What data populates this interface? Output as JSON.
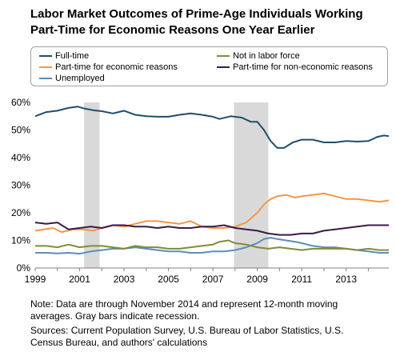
{
  "header": {
    "title_line1": "Labor Market Outcomes of Prime-Age Individuals Working",
    "title_line2": "Part-Time for Economic Reasons One Year Earlier"
  },
  "notes": {
    "line1": "Note: Data are through November 2014 and represent 12-month moving",
    "line2": "averages.  Gray bars indicate recession.",
    "line3": "Sources: Current Population Survey, U.S. Bureau of Labor Statistics, U.S.",
    "line4": "Census Bureau, and authors' calculations"
  },
  "chart_data": {
    "type": "line",
    "title": "Labor Market Outcomes of Prime-Age Individuals Working Part-Time for Economic Reasons One Year Earlier",
    "xlim": [
      1999,
      2014.92
    ],
    "ylim": [
      0,
      60
    ],
    "y_ticks": [
      "0%",
      "10%",
      "20%",
      "30%",
      "40%",
      "50%",
      "60%"
    ],
    "y_tick_values": [
      0,
      10,
      20,
      30,
      40,
      50,
      60
    ],
    "x_ticks": [
      "1999",
      "2001",
      "2003",
      "2005",
      "2007",
      "2009",
      "2011",
      "2013"
    ],
    "x_tick_values": [
      1999,
      2001,
      2003,
      2005,
      2007,
      2009,
      2011,
      2013
    ],
    "recessions": [
      [
        2001.2,
        2001.9
      ],
      [
        2007.95,
        2009.5
      ]
    ],
    "legend_position": "top",
    "series": [
      {
        "name": "Full-time",
        "color": "#1f4e6b",
        "points": [
          [
            1999,
            55
          ],
          [
            1999.5,
            56.5
          ],
          [
            2000,
            57
          ],
          [
            2000.5,
            58
          ],
          [
            2000.9,
            58.5
          ],
          [
            2001.2,
            57.8
          ],
          [
            2001.6,
            57.2
          ],
          [
            2002,
            56.8
          ],
          [
            2002.5,
            56
          ],
          [
            2003,
            57
          ],
          [
            2003.5,
            55.5
          ],
          [
            2004,
            55
          ],
          [
            2004.5,
            54.8
          ],
          [
            2005,
            54.8
          ],
          [
            2005.5,
            55.5
          ],
          [
            2006,
            56
          ],
          [
            2006.5,
            55.5
          ],
          [
            2007,
            54.8
          ],
          [
            2007.3,
            54
          ],
          [
            2007.8,
            55
          ],
          [
            2008.3,
            54.5
          ],
          [
            2008.7,
            53
          ],
          [
            2009,
            53
          ],
          [
            2009.3,
            50
          ],
          [
            2009.6,
            46
          ],
          [
            2009.9,
            43.5
          ],
          [
            2010.2,
            43.5
          ],
          [
            2010.6,
            45.5
          ],
          [
            2011,
            46.5
          ],
          [
            2011.5,
            46.5
          ],
          [
            2012,
            45.5
          ],
          [
            2012.5,
            45.5
          ],
          [
            2013,
            46
          ],
          [
            2013.5,
            45.8
          ],
          [
            2014,
            46
          ],
          [
            2014.4,
            47.5
          ],
          [
            2014.7,
            48
          ],
          [
            2014.92,
            47.8
          ]
        ]
      },
      {
        "name": "Part-time for economic reasons",
        "color": "#f79646",
        "points": [
          [
            1999,
            13.5
          ],
          [
            1999.4,
            14
          ],
          [
            1999.8,
            14.5
          ],
          [
            2000.2,
            13
          ],
          [
            2000.7,
            14
          ],
          [
            2001.2,
            14
          ],
          [
            2001.6,
            13.5
          ],
          [
            2002,
            14.5
          ],
          [
            2002.5,
            15.5
          ],
          [
            2003,
            15
          ],
          [
            2003.5,
            16
          ],
          [
            2004,
            17
          ],
          [
            2004.5,
            17
          ],
          [
            2005,
            16.5
          ],
          [
            2005.5,
            16
          ],
          [
            2006,
            17
          ],
          [
            2006.5,
            15
          ],
          [
            2007,
            14.5
          ],
          [
            2007.5,
            14.5
          ],
          [
            2008,
            15
          ],
          [
            2008.5,
            16.5
          ],
          [
            2009,
            20
          ],
          [
            2009.3,
            23
          ],
          [
            2009.6,
            25
          ],
          [
            2009.9,
            26
          ],
          [
            2010.3,
            26.5
          ],
          [
            2010.7,
            25.5
          ],
          [
            2011,
            26
          ],
          [
            2011.5,
            26.5
          ],
          [
            2012,
            27
          ],
          [
            2012.5,
            26
          ],
          [
            2013,
            25
          ],
          [
            2013.5,
            25
          ],
          [
            2014,
            24.5
          ],
          [
            2014.5,
            24
          ],
          [
            2014.92,
            24.5
          ]
        ]
      },
      {
        "name": "Unemployed",
        "color": "#5b8db8",
        "points": [
          [
            1999,
            5.5
          ],
          [
            1999.5,
            5.5
          ],
          [
            2000,
            5.3
          ],
          [
            2000.5,
            5.5
          ],
          [
            2001,
            5.2
          ],
          [
            2001.5,
            6
          ],
          [
            2002,
            6.5
          ],
          [
            2002.5,
            7
          ],
          [
            2003,
            7
          ],
          [
            2003.5,
            7.5
          ],
          [
            2004,
            7
          ],
          [
            2004.5,
            6.5
          ],
          [
            2005,
            6
          ],
          [
            2005.5,
            6
          ],
          [
            2006,
            5.5
          ],
          [
            2006.5,
            5.5
          ],
          [
            2007,
            6
          ],
          [
            2007.5,
            6
          ],
          [
            2008,
            6.5
          ],
          [
            2008.5,
            7.5
          ],
          [
            2009,
            9
          ],
          [
            2009.3,
            10.5
          ],
          [
            2009.6,
            11
          ],
          [
            2009.9,
            10.5
          ],
          [
            2010.3,
            10
          ],
          [
            2010.7,
            9.5
          ],
          [
            2011,
            9
          ],
          [
            2011.5,
            8
          ],
          [
            2012,
            7.5
          ],
          [
            2012.5,
            7.5
          ],
          [
            2013,
            7
          ],
          [
            2013.5,
            6.5
          ],
          [
            2014,
            6
          ],
          [
            2014.5,
            5.5
          ],
          [
            2014.92,
            5.5
          ]
        ]
      },
      {
        "name": "Not in labor force",
        "color": "#7f8c3a",
        "points": [
          [
            1999,
            8
          ],
          [
            1999.5,
            8
          ],
          [
            2000,
            7.5
          ],
          [
            2000.5,
            8.5
          ],
          [
            2001,
            7.5
          ],
          [
            2001.5,
            8
          ],
          [
            2002,
            8
          ],
          [
            2002.5,
            7.5
          ],
          [
            2003,
            7
          ],
          [
            2003.5,
            8
          ],
          [
            2004,
            7.5
          ],
          [
            2004.5,
            7.5
          ],
          [
            2005,
            7
          ],
          [
            2005.5,
            7
          ],
          [
            2006,
            7.5
          ],
          [
            2006.5,
            8
          ],
          [
            2007,
            8.5
          ],
          [
            2007.3,
            9.5
          ],
          [
            2007.7,
            10
          ],
          [
            2008,
            9
          ],
          [
            2008.5,
            8.5
          ],
          [
            2009,
            7.5
          ],
          [
            2009.5,
            7
          ],
          [
            2010,
            7.5
          ],
          [
            2010.5,
            7
          ],
          [
            2011,
            6.5
          ],
          [
            2011.5,
            7
          ],
          [
            2012,
            7
          ],
          [
            2012.5,
            7
          ],
          [
            2013,
            7
          ],
          [
            2013.5,
            6.5
          ],
          [
            2014,
            7
          ],
          [
            2014.5,
            6.5
          ],
          [
            2014.92,
            6.5
          ]
        ]
      },
      {
        "name": "Part-time for non-economic reasons",
        "color": "#3b1a48",
        "points": [
          [
            1999,
            16.5
          ],
          [
            1999.5,
            16
          ],
          [
            2000,
            16.5
          ],
          [
            2000.5,
            14
          ],
          [
            2001,
            14.5
          ],
          [
            2001.5,
            15
          ],
          [
            2002,
            14.5
          ],
          [
            2002.5,
            15.5
          ],
          [
            2003,
            15.5
          ],
          [
            2003.5,
            15
          ],
          [
            2004,
            15
          ],
          [
            2004.5,
            14.5
          ],
          [
            2005,
            15
          ],
          [
            2005.5,
            14.5
          ],
          [
            2006,
            14.5
          ],
          [
            2006.5,
            15
          ],
          [
            2007,
            15
          ],
          [
            2007.5,
            15.5
          ],
          [
            2008,
            14.5
          ],
          [
            2008.5,
            14
          ],
          [
            2009,
            13.5
          ],
          [
            2009.5,
            12.5
          ],
          [
            2010,
            12
          ],
          [
            2010.5,
            12
          ],
          [
            2011,
            12.5
          ],
          [
            2011.5,
            12.5
          ],
          [
            2012,
            13.5
          ],
          [
            2012.5,
            14
          ],
          [
            2013,
            14.5
          ],
          [
            2013.5,
            15
          ],
          [
            2014,
            15.5
          ],
          [
            2014.5,
            15.5
          ],
          [
            2014.92,
            15.5
          ]
        ]
      }
    ],
    "legend_layout": [
      {
        "name": "Full-time",
        "color": "#1f4e6b",
        "col": 0,
        "row": 0
      },
      {
        "name": "Not in labor force",
        "color": "#7f8c3a",
        "col": 1,
        "row": 0
      },
      {
        "name": "Part-time for economic reasons",
        "color": "#f79646",
        "col": 0,
        "row": 1
      },
      {
        "name": "Part-time for non-economic reasons",
        "color": "#3b1a48",
        "col": 1,
        "row": 1
      },
      {
        "name": "Unemployed",
        "color": "#5b8db8",
        "col": 0,
        "row": 2
      }
    ]
  }
}
